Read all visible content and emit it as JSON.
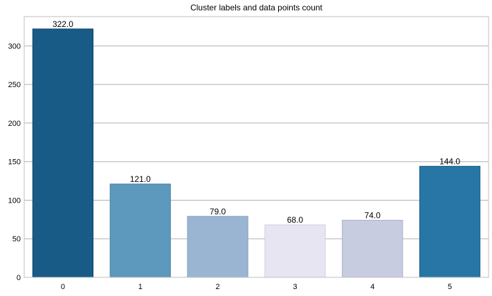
{
  "chart_data": {
    "type": "bar",
    "title": "Cluster labels and data points count",
    "xlabel": "",
    "ylabel": "",
    "categories": [
      "0",
      "1",
      "2",
      "3",
      "4",
      "5"
    ],
    "values": [
      322.0,
      121.0,
      79.0,
      68.0,
      74.0,
      144.0
    ],
    "data_labels": [
      "322.0",
      "121.0",
      "79.0",
      "68.0",
      "74.0",
      "144.0"
    ],
    "ylim": [
      0,
      338
    ],
    "yticks": [
      0,
      50,
      100,
      150,
      200,
      250,
      300
    ],
    "grid": "horizontal",
    "colors": [
      "#185b87",
      "#5d99bc",
      "#9ab5d1",
      "#e7e5f2",
      "#c8cce1",
      "#2776a6"
    ],
    "edge_colors": [
      "#0f4466",
      "#4a83a6",
      "#7f9fbf",
      "#cfcde0",
      "#aab0cc",
      "#1a5f8a"
    ]
  }
}
